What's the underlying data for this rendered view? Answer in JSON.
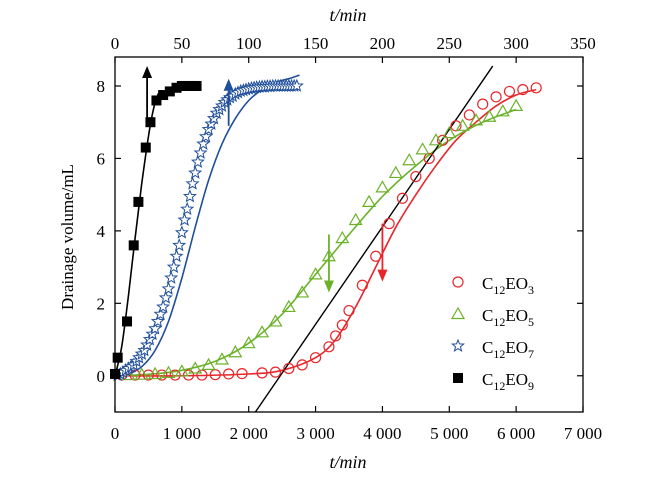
{
  "chart_data": {
    "type": "scatter",
    "xlabel": "t/min",
    "top_xlabel": "t/min",
    "ylabel": "Drainage volume/mL",
    "xlim": [
      0,
      7000
    ],
    "top_xlim": [
      0,
      350
    ],
    "ylim": [
      -1,
      8.8
    ],
    "x_ticks": [
      0,
      1000,
      2000,
      3000,
      4000,
      5000,
      6000,
      7000
    ],
    "x_tick_labels": [
      "0",
      "1 000",
      "2 000",
      "3 000",
      "4 000",
      "5 000",
      "6 000",
      "7 000"
    ],
    "top_x_ticks": [
      0,
      50,
      100,
      150,
      200,
      250,
      300,
      350
    ],
    "top_x_tick_labels": [
      "0",
      "50",
      "100",
      "150",
      "200",
      "250",
      "300",
      "350"
    ],
    "y_ticks": [
      0,
      2,
      4,
      6,
      8
    ],
    "y_tick_labels": [
      "0",
      "2",
      "4",
      "6",
      "8"
    ],
    "legend_position": "right",
    "series": [
      {
        "name": "C12EO3",
        "legend_main": "C",
        "legend_sub1": "12",
        "legend_mid": "EO",
        "legend_sub2": "3",
        "marker": "circle-open",
        "color": "#e8262a",
        "axis": "bottom",
        "x": [
          100,
          300,
          500,
          700,
          900,
          1100,
          1300,
          1500,
          1700,
          1900,
          2200,
          2400,
          2600,
          2800,
          3000,
          3200,
          3300,
          3400,
          3500,
          3700,
          3900,
          4100,
          4300,
          4500,
          4700,
          4900,
          5100,
          5300,
          5500,
          5700,
          5900,
          6100,
          6300
        ],
        "y": [
          0.02,
          0.02,
          0.02,
          0.02,
          0.02,
          0.02,
          0.02,
          0.03,
          0.05,
          0.06,
          0.08,
          0.1,
          0.2,
          0.3,
          0.5,
          0.8,
          1.1,
          1.4,
          1.8,
          2.5,
          3.3,
          4.2,
          4.9,
          5.5,
          6.0,
          6.5,
          6.9,
          7.2,
          7.5,
          7.7,
          7.85,
          7.9,
          7.95
        ],
        "fit_x": [
          0,
          1000,
          2000,
          2500,
          3000,
          3300,
          3600,
          3900,
          4200,
          4500,
          4800,
          5100,
          5400,
          5700,
          6000,
          6300
        ],
        "fit_y": [
          0,
          0,
          0.05,
          0.15,
          0.5,
          1.0,
          1.9,
          3.0,
          4.1,
          5.0,
          5.8,
          6.5,
          7.0,
          7.45,
          7.75,
          7.9
        ]
      },
      {
        "name": "C12EO5",
        "legend_main": "C",
        "legend_sub1": "12",
        "legend_mid": "EO",
        "legend_sub2": "5",
        "marker": "triangle-open",
        "color": "#6bb22a",
        "axis": "bottom",
        "x": [
          200,
          400,
          600,
          800,
          1000,
          1200,
          1400,
          1600,
          1800,
          2000,
          2200,
          2400,
          2600,
          2800,
          3000,
          3200,
          3400,
          3600,
          3800,
          4000,
          4200,
          4400,
          4600,
          4800,
          5000,
          5200,
          5400,
          5600,
          5800,
          6000
        ],
        "y": [
          0.02,
          0.03,
          0.05,
          0.08,
          0.12,
          0.2,
          0.3,
          0.45,
          0.65,
          0.9,
          1.2,
          1.5,
          1.9,
          2.3,
          2.8,
          3.3,
          3.8,
          4.3,
          4.8,
          5.2,
          5.6,
          5.95,
          6.25,
          6.5,
          6.7,
          6.9,
          7.05,
          7.15,
          7.3,
          7.45
        ],
        "fit_x": [
          0,
          500,
          1000,
          1500,
          2000,
          2500,
          3000,
          3500,
          4000,
          4500,
          5000,
          5500,
          6000
        ],
        "fit_y": [
          0,
          0.04,
          0.15,
          0.4,
          0.9,
          1.7,
          2.8,
          3.9,
          4.95,
          5.8,
          6.5,
          7.0,
          7.35
        ]
      },
      {
        "name": "C12EO7",
        "legend_main": "C",
        "legend_sub1": "12",
        "legend_mid": "EO",
        "legend_sub2": "7",
        "marker": "star-open",
        "color": "#1f4e9a",
        "axis": "top",
        "x": [
          2,
          4,
          6,
          8,
          10,
          12,
          14,
          16,
          18,
          20,
          22,
          24,
          26,
          28,
          30,
          32,
          34,
          36,
          38,
          40,
          42,
          44,
          46,
          48,
          50,
          52,
          54,
          56,
          58,
          60,
          62,
          64,
          66,
          68,
          70,
          72,
          74,
          76,
          78,
          80,
          82,
          84,
          86,
          88,
          90,
          92,
          94,
          96,
          98,
          100,
          102,
          104,
          106,
          108,
          110,
          112,
          114,
          116,
          118,
          120,
          122,
          124,
          126,
          128,
          130,
          132,
          134,
          136
        ],
        "y": [
          0.02,
          0.05,
          0.1,
          0.15,
          0.2,
          0.25,
          0.3,
          0.4,
          0.5,
          0.6,
          0.7,
          0.85,
          1.0,
          1.15,
          1.3,
          1.5,
          1.7,
          1.9,
          2.15,
          2.4,
          2.7,
          3.0,
          3.3,
          3.6,
          3.95,
          4.3,
          4.6,
          4.95,
          5.3,
          5.6,
          5.9,
          6.15,
          6.4,
          6.6,
          6.8,
          6.95,
          7.1,
          7.25,
          7.35,
          7.45,
          7.55,
          7.62,
          7.68,
          7.72,
          7.78,
          7.82,
          7.86,
          7.88,
          7.9,
          7.92,
          7.94,
          7.95,
          7.96,
          7.97,
          7.98,
          7.98,
          7.99,
          7.99,
          8.0,
          8.0,
          8.0,
          8.0,
          8.0,
          8.0,
          8.0,
          8.0,
          8.0,
          8.0
        ],
        "fit_x": [
          0,
          10,
          20,
          30,
          40,
          50,
          60,
          70,
          80,
          90,
          100,
          110,
          120,
          130,
          138
        ],
        "fit_y": [
          0,
          0.05,
          0.25,
          0.7,
          1.5,
          2.7,
          4.1,
          5.4,
          6.4,
          7.1,
          7.6,
          7.9,
          8.1,
          8.2,
          8.3
        ]
      },
      {
        "name": "C12EO9",
        "legend_main": "C",
        "legend_sub1": "12",
        "legend_mid": "EO",
        "legend_sub2": "9",
        "marker": "square-filled",
        "color": "#000000",
        "axis": "bottom",
        "x": [
          0,
          40,
          180,
          280,
          350,
          460,
          530,
          620,
          720,
          820,
          920,
          1000,
          1080,
          1160,
          1220
        ],
        "y": [
          0.05,
          0.5,
          1.5,
          3.6,
          4.8,
          6.3,
          7.0,
          7.6,
          7.75,
          7.85,
          7.95,
          8.0,
          8.0,
          8.0,
          8.0
        ],
        "fit_x": [
          0,
          100,
          200,
          300,
          400,
          500,
          580,
          650
        ],
        "fit_y": [
          0,
          0.8,
          2.2,
          3.8,
          5.3,
          6.6,
          7.4,
          7.8
        ]
      }
    ],
    "tangent_line": {
      "x": [
        2100,
        5650
      ],
      "y": [
        -1,
        8.55
      ]
    },
    "arrows": [
      {
        "color": "#e8262a",
        "x": 4000,
        "y_from": 4.2,
        "y_to": 2.6
      },
      {
        "color": "#6bb22a",
        "x": 3200,
        "y_from": 3.9,
        "y_to": 2.3
      },
      {
        "color": "#1f4e9a",
        "x": 1700,
        "y_from": 6.9,
        "y_to": 8.2
      },
      {
        "color": "#000000",
        "x": 480,
        "y_from": 6.9,
        "y_to": 8.55
      }
    ]
  }
}
